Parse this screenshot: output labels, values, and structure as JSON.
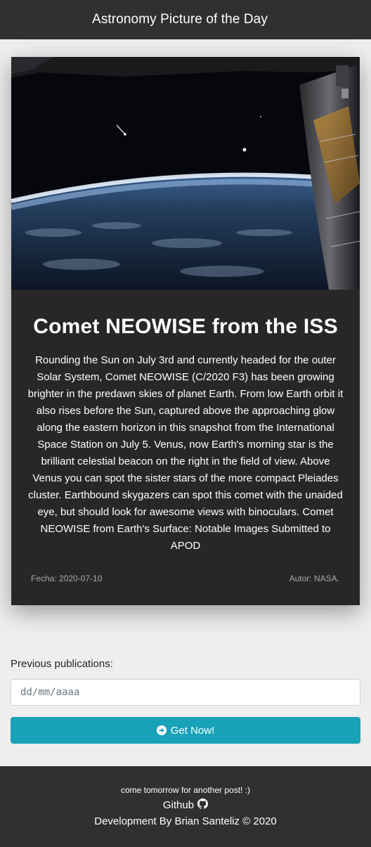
{
  "navbar": {
    "title": "Astronomy Picture of the Day"
  },
  "post": {
    "title": "Comet NEOWISE from the ISS",
    "explanation": "Rounding the Sun on July 3rd and currently headed for the outer Solar System, Comet NEOWISE (C/2020 F3) has been growing brighter in the predawn skies of planet Earth. From low Earth orbit it also rises before the Sun, captured above the approaching glow along the eastern horizon in this snapshot from the International Space Station on July 5. Venus, now Earth's morning star is the brilliant celestial beacon on the right in the field of view. Above Venus you can spot the sister stars of the more compact Pleiades cluster. Earthbound skygazers can spot this comet with the unaided eye, but should look for awesome views with binoculars. Comet NEOWISE from Earth's Surface: Notable Images Submitted to APOD",
    "date": "Fecha: 2020-07-10",
    "author": "Autor: NASA."
  },
  "search": {
    "label": "Previous publications:",
    "placeholder": "dd/mm/aaaa",
    "button_label": "Get Now!",
    "button_icon": "arrow-circle-right-icon"
  },
  "footer": {
    "tagline": "come tomorrow for another post! :)",
    "github_label": "Github",
    "github_icon": "github-icon",
    "credits": "Development By Brian Santeliz © 2020"
  },
  "colors": {
    "navbar_bg": "#303030",
    "card_bg": "#272727",
    "button": "#17a2b8",
    "page_bg": "#eeeeee"
  }
}
